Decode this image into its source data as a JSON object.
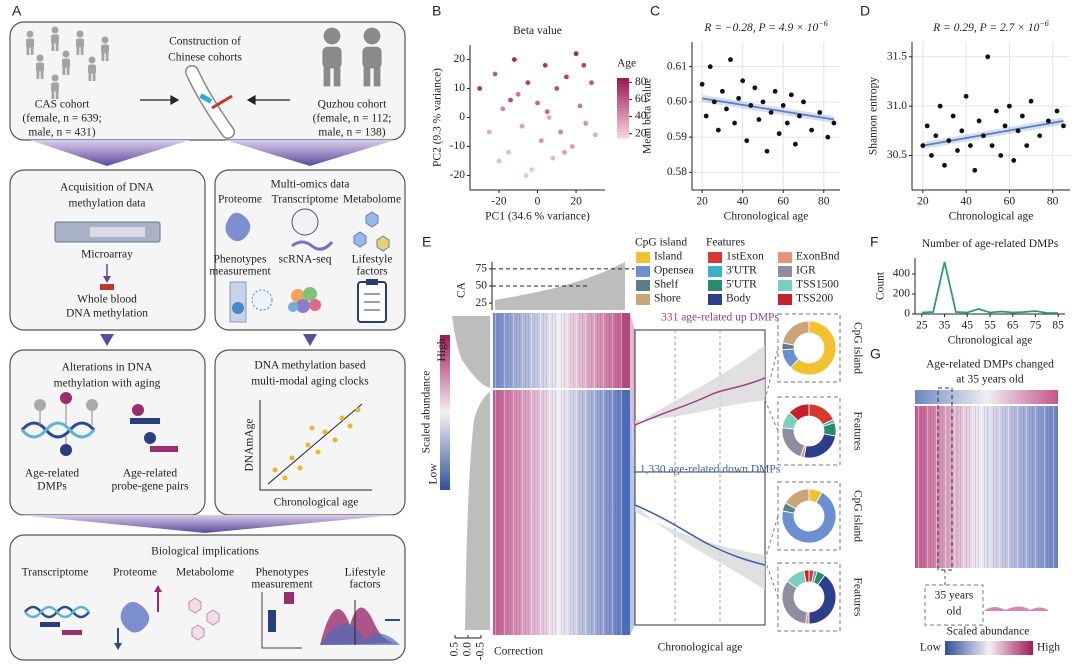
{
  "labels": [
    "A",
    "B",
    "C",
    "D",
    "E",
    "F",
    "G"
  ],
  "panel_a": {
    "cohort_title": [
      "Construction of",
      "Chinese cohorts"
    ],
    "cas": [
      "CAS cohort",
      "(female, n = 639;",
      "male, n = 431)"
    ],
    "quzhou": [
      "Quzhou cohort",
      "(female, n = 112;",
      "male, n = 138)"
    ],
    "acquisition": {
      "title": [
        "Acquisition of DNA",
        "methylation data"
      ],
      "device": "Microarray",
      "sample": [
        "Whole blood",
        "DNA methylation"
      ]
    },
    "multi_omics": {
      "title": "Multi-omics data",
      "items": [
        [
          "Proteome"
        ],
        [
          "Transcriptome"
        ],
        [
          "Metabolome"
        ],
        [
          "Phenotypes",
          "measurement"
        ],
        [
          "scRNA-seq"
        ],
        [
          "Lifestyle",
          "factors"
        ]
      ]
    },
    "alterations": {
      "title": [
        "Alterations in DNA",
        "methylation with aging"
      ],
      "items": [
        [
          "Age-related",
          "DMPs"
        ],
        [
          "Age-related",
          "probe-gene pairs"
        ]
      ]
    },
    "clocks": {
      "title": [
        "DNA methylation based",
        "multi-modal aging clocks"
      ],
      "y_label": "DNAmAge",
      "x_label": "Chronological age"
    },
    "implications": {
      "title": "Biological implications",
      "items": [
        [
          "Transcriptome"
        ],
        [
          "Proteome"
        ],
        [
          "Metabolome"
        ],
        [
          "Phenotypes",
          "measurement"
        ],
        [
          "Lifestyle",
          "factors"
        ]
      ]
    }
  },
  "chart_data": [
    {
      "type": "scatter",
      "title": "Beta value",
      "x_label": "PC1 (34.6 % variance)",
      "y_label": "PC2 (9.3 % variance)",
      "x": [
        -30,
        -25,
        -22,
        -18,
        -15,
        -12,
        -10,
        -8,
        -5,
        -3,
        0,
        2,
        4,
        6,
        8,
        10,
        12,
        15,
        18,
        20,
        22,
        25,
        28,
        30,
        -20,
        -6,
        5,
        14,
        -14,
        24
      ],
      "y": [
        10,
        -5,
        15,
        3,
        -12,
        20,
        8,
        -3,
        12,
        -18,
        5,
        -8,
        18,
        0,
        -14,
        10,
        -5,
        14,
        -10,
        22,
        4,
        -2,
        12,
        -6,
        -15,
        -20,
        2,
        -12,
        6,
        18
      ],
      "age": [
        75,
        30,
        60,
        45,
        25,
        80,
        50,
        35,
        70,
        20,
        55,
        40,
        75,
        30,
        25,
        65,
        45,
        70,
        35,
        80,
        50,
        40,
        60,
        30,
        25,
        20,
        55,
        35,
        65,
        70
      ],
      "xlim": [
        -35,
        35
      ],
      "xticks": [
        -20,
        0,
        20
      ],
      "ylim": [
        -25,
        25
      ],
      "yticks": [
        -20,
        -10,
        0,
        10,
        20
      ],
      "grid": false,
      "colorbar": {
        "title": "Age",
        "lim": [
          15,
          85
        ],
        "ticks": [
          20,
          40,
          60,
          80
        ],
        "colors": [
          "#f8d0dc",
          "#a0195a"
        ]
      }
    },
    {
      "type": "scatter",
      "title": "R = −0.28, P = 4.9 × 10",
      "title_exponent": "−6",
      "x_label": "Chronological age",
      "y_label": "Mean beta value",
      "x": [
        20,
        22,
        24,
        26,
        28,
        30,
        32,
        34,
        36,
        38,
        40,
        42,
        44,
        46,
        48,
        50,
        52,
        54,
        56,
        58,
        60,
        62,
        64,
        66,
        68,
        70,
        74,
        78,
        82,
        85
      ],
      "y": [
        0.605,
        0.596,
        0.61,
        0.6,
        0.592,
        0.603,
        0.598,
        0.612,
        0.594,
        0.601,
        0.606,
        0.589,
        0.599,
        0.604,
        0.595,
        0.6,
        0.586,
        0.597,
        0.603,
        0.591,
        0.599,
        0.594,
        0.602,
        0.588,
        0.596,
        0.6,
        0.592,
        0.597,
        0.59,
        0.594
      ],
      "color": "#111111",
      "fit": {
        "x": [
          20,
          85
        ],
        "y": [
          0.601,
          0.595
        ],
        "color": "#5b7fc0"
      },
      "xlim": [
        15,
        88
      ],
      "xticks": [
        20,
        40,
        60,
        80
      ],
      "ylim": [
        0.575,
        0.617
      ],
      "yticks": [
        0.58,
        0.59,
        {
          "value": 0.6,
          "label": "0.60"
        },
        0.61
      ],
      "grid": true
    },
    {
      "type": "scatter",
      "title": "R = 0.29, P = 2.7 × 10",
      "title_exponent": "−6",
      "x_label": "Chronological age",
      "y_label": "Shannon entropy",
      "x": [
        20,
        22,
        24,
        26,
        28,
        30,
        32,
        34,
        36,
        38,
        40,
        42,
        44,
        46,
        48,
        50,
        52,
        54,
        56,
        58,
        60,
        62,
        64,
        66,
        68,
        70,
        74,
        78,
        82,
        85
      ],
      "y": [
        30.6,
        30.8,
        30.5,
        30.7,
        31.0,
        30.4,
        30.65,
        30.9,
        30.55,
        30.75,
        31.1,
        30.6,
        30.35,
        30.85,
        30.7,
        31.5,
        30.6,
        30.95,
        30.5,
        30.8,
        31.0,
        30.45,
        30.75,
        30.9,
        30.6,
        31.05,
        30.7,
        30.85,
        30.95,
        30.8
      ],
      "color": "#111111",
      "fit": {
        "x": [
          20,
          85
        ],
        "y": [
          30.6,
          30.85
        ],
        "color": "#5b7fc0"
      },
      "xlim": [
        15,
        88
      ],
      "xticks": [
        20,
        40,
        60,
        80
      ],
      "ylim": [
        30.15,
        31.65
      ],
      "yticks": [
        30.5,
        {
          "value": 31,
          "label": "31.0"
        },
        31.5
      ],
      "grid": true
    },
    {
      "type": "line",
      "title": "Number of age-related DMPs",
      "x_label": "Chronological age",
      "y_label": "Count",
      "x": [
        25,
        30,
        35,
        40,
        45,
        50,
        55,
        60,
        65,
        70,
        75,
        80,
        85
      ],
      "values": [
        15,
        20,
        520,
        20,
        15,
        50,
        15,
        25,
        15,
        20,
        30,
        10,
        10
      ],
      "color": "#2a9d7f",
      "xlim": [
        22,
        88
      ],
      "xticks": [
        25,
        35,
        45,
        55,
        65,
        75,
        85
      ],
      "ylim": [
        0,
        560
      ],
      "yticks": [
        0,
        200,
        400
      ],
      "grid": false
    }
  ],
  "panel_e": {
    "ca": {
      "label": "CA",
      "ticks": [
        25,
        50,
        75
      ],
      "lim": [
        15,
        85
      ]
    },
    "cpg_legend": {
      "title": "CpG island",
      "items": [
        {
          "name": "Island",
          "color": "#f2c12e"
        },
        {
          "name": "Opensea",
          "color": "#6b8fd1"
        },
        {
          "name": "Shelf",
          "color": "#5a7f8a"
        },
        {
          "name": "Shore",
          "color": "#c9a677"
        }
      ]
    },
    "features_legend": {
      "title": "Features",
      "items": [
        {
          "name": "1stExon",
          "color": "#d63a2f"
        },
        {
          "name": "3'UTR",
          "color": "#3bb0c9"
        },
        {
          "name": "5'UTR",
          "color": "#2a8a6e"
        },
        {
          "name": "Body",
          "color": "#2c3e8c"
        },
        {
          "name": "ExonBnd",
          "color": "#e8937a"
        },
        {
          "name": "IGR",
          "color": "#8e8e9e"
        },
        {
          "name": "TSS1500",
          "color": "#7ccfc0"
        },
        {
          "name": "TSS200",
          "color": "#c8202a"
        }
      ]
    },
    "up_label": "331 age-related up DMPs",
    "down_label": "1,330 age-related down DMPs",
    "x_label": "Chronological age",
    "scale": {
      "title": "Scaled abundance",
      "high": "High",
      "low": "Low"
    },
    "correction": {
      "label": "Correction",
      "ticks": [
        0.5,
        {
          "value": 0,
          "label": "0.0"
        },
        -0.5
      ]
    },
    "donuts": {
      "cpg_island": {
        "up": [
          62,
          12,
          4,
          22
        ],
        "down": [
          8,
          70,
          5,
          17
        ]
      },
      "features": {
        "up": [
          18,
          2,
          8,
          25,
          2,
          22,
          10,
          13
        ],
        "down": [
          3,
          2,
          5,
          40,
          2,
          33,
          12,
          3
        ]
      }
    }
  },
  "panel_g": {
    "title": [
      "Age-related DMPs changed",
      "at 35 years old"
    ],
    "callout": [
      "35 years",
      "old"
    ],
    "scale": {
      "title": "Scaled abundance",
      "low": "Low",
      "high": "High"
    }
  }
}
